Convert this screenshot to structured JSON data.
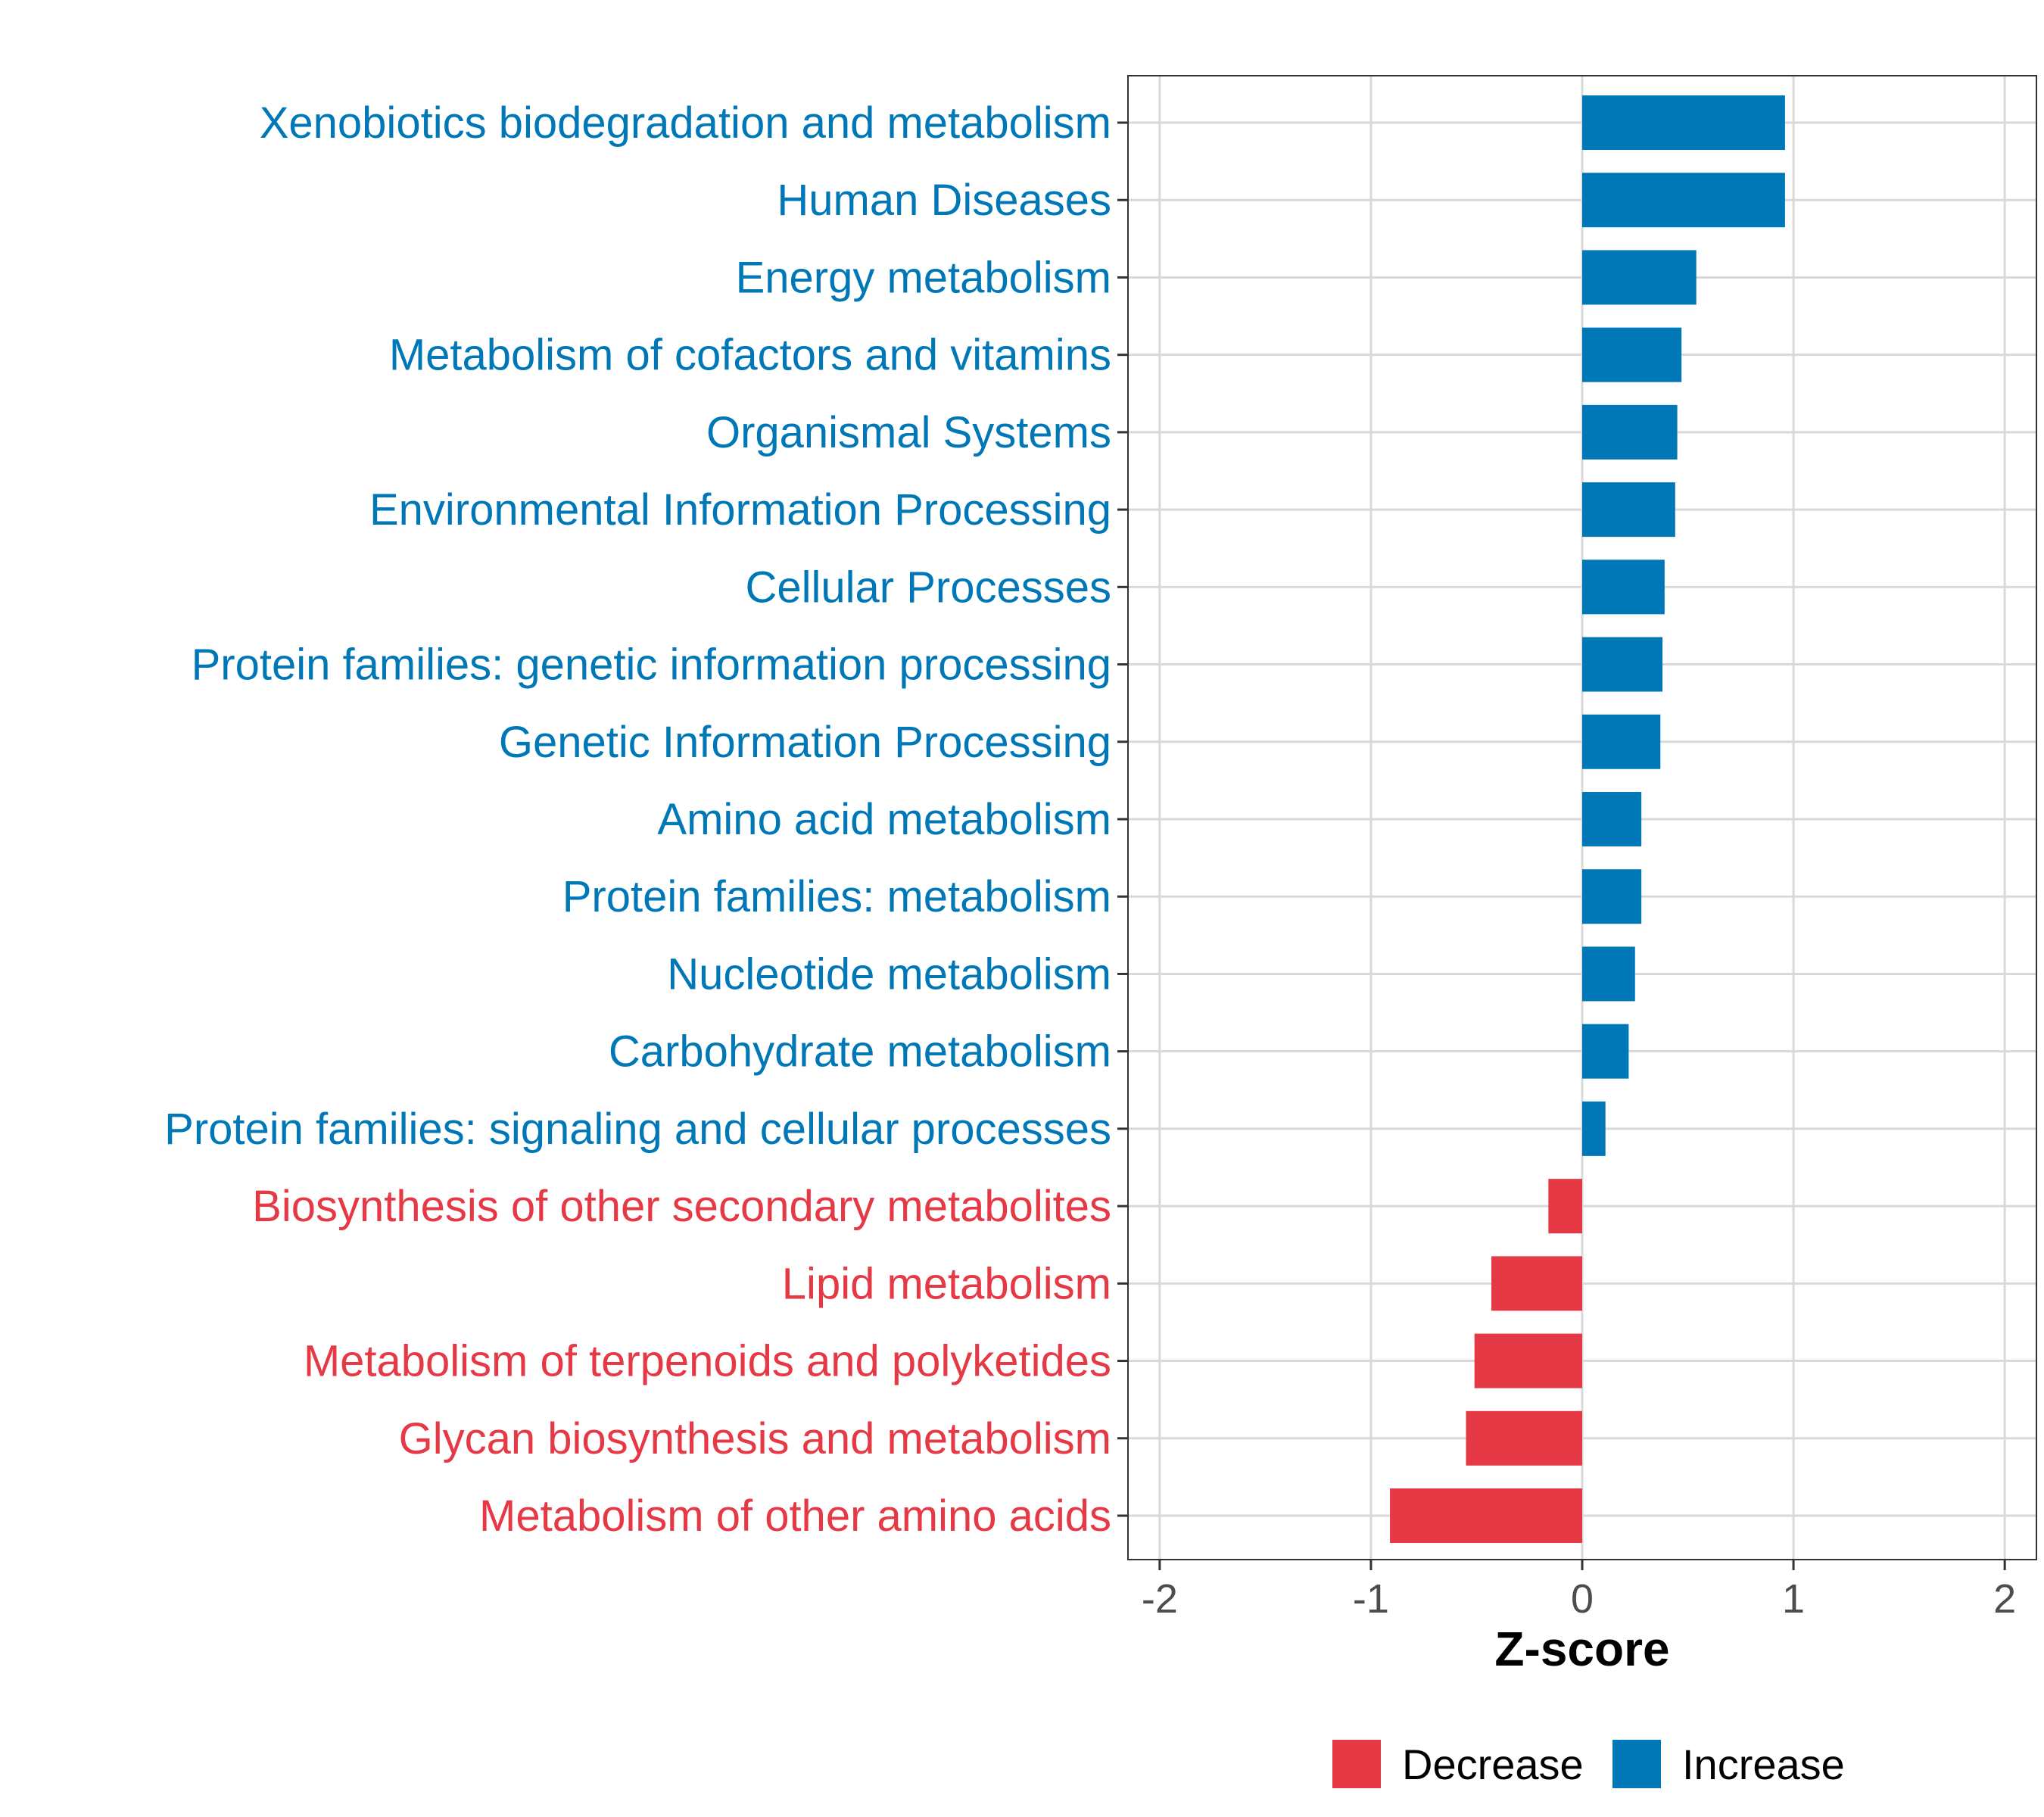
{
  "chart_data": {
    "type": "bar",
    "orientation": "horizontal",
    "title": "",
    "xlabel": "Z-score",
    "ylabel": "",
    "xlim": [
      -2.15,
      2.15
    ],
    "xticks": [
      -2,
      -1,
      0,
      1,
      2
    ],
    "xtick_labels": [
      "-2",
      "-1",
      "0",
      "1",
      "2"
    ],
    "grid": true,
    "legend_position": "bottom",
    "legend": [
      {
        "label": "Decrease",
        "color": "#E63946"
      },
      {
        "label": "Increase",
        "color": "#0077B6"
      }
    ],
    "categories": [
      "Xenobiotics biodegradation and metabolism",
      "Human Diseases",
      "Energy metabolism",
      "Metabolism of cofactors and vitamins",
      "Organismal Systems",
      "Environmental Information Processing",
      "Cellular Processes",
      "Protein families: genetic information processing",
      "Genetic Information Processing",
      "Amino acid metabolism",
      "Protein families: metabolism",
      "Nucleotide metabolism",
      "Carbohydrate metabolism",
      "Protein families: signaling and cellular processes",
      "Biosynthesis of other secondary metabolites",
      "Lipid metabolism",
      "Metabolism of terpenoids and polyketides",
      "Glycan biosynthesis and metabolism",
      "Metabolism of other amino acids"
    ],
    "values": [
      0.96,
      0.96,
      0.54,
      0.47,
      0.45,
      0.44,
      0.39,
      0.38,
      0.37,
      0.28,
      0.28,
      0.25,
      0.22,
      0.11,
      -0.16,
      -0.43,
      -0.51,
      -0.55,
      -0.91
    ],
    "groups": [
      "Increase",
      "Increase",
      "Increase",
      "Increase",
      "Increase",
      "Increase",
      "Increase",
      "Increase",
      "Increase",
      "Increase",
      "Increase",
      "Increase",
      "Increase",
      "Increase",
      "Decrease",
      "Decrease",
      "Decrease",
      "Decrease",
      "Decrease"
    ]
  },
  "colors": {
    "increase": "#0077B6",
    "decrease": "#E63946",
    "grid": "#d9d9d9",
    "panel_border": "#333333"
  }
}
